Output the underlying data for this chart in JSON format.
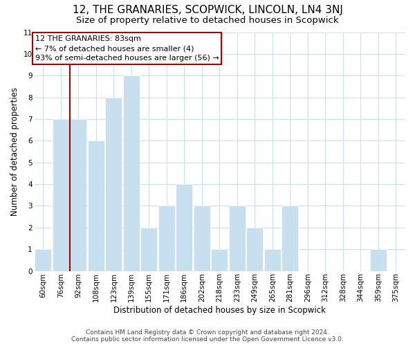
{
  "title": "12, THE GRANARIES, SCOPWICK, LINCOLN, LN4 3NJ",
  "subtitle": "Size of property relative to detached houses in Scopwick",
  "xlabel": "Distribution of detached houses by size in Scopwick",
  "ylabel": "Number of detached properties",
  "footer_line1": "Contains HM Land Registry data © Crown copyright and database right 2024.",
  "footer_line2": "Contains public sector information licensed under the Open Government Licence v3.0.",
  "categories": [
    "60sqm",
    "76sqm",
    "92sqm",
    "108sqm",
    "123sqm",
    "139sqm",
    "155sqm",
    "171sqm",
    "186sqm",
    "202sqm",
    "218sqm",
    "233sqm",
    "249sqm",
    "265sqm",
    "281sqm",
    "296sqm",
    "312sqm",
    "328sqm",
    "344sqm",
    "359sqm",
    "375sqm"
  ],
  "values": [
    1,
    7,
    7,
    6,
    8,
    9,
    2,
    3,
    4,
    3,
    1,
    3,
    2,
    1,
    3,
    0,
    0,
    0,
    0,
    1,
    0
  ],
  "bar_color": "#c8dff0",
  "vline_x": 1.5,
  "vline_color": "#aa0000",
  "annotation_line1": "12 THE GRANARIES: 83sqm",
  "annotation_line2": "← 7% of detached houses are smaller (4)",
  "annotation_line3": "93% of semi-detached houses are larger (56) →",
  "ylim": [
    0,
    11
  ],
  "yticks": [
    0,
    1,
    2,
    3,
    4,
    5,
    6,
    7,
    8,
    9,
    10,
    11
  ],
  "background_color": "#ffffff",
  "grid_color": "#c8dff0",
  "title_fontsize": 11,
  "subtitle_fontsize": 9.5,
  "axis_label_fontsize": 8.5,
  "tick_fontsize": 7.5,
  "annotation_fontsize": 8,
  "footer_fontsize": 6.5
}
